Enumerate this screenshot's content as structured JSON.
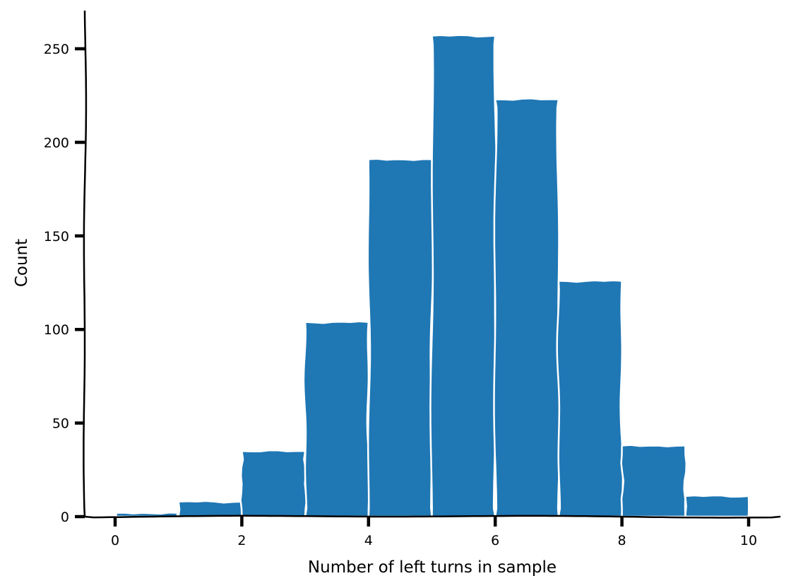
{
  "chart_data": {
    "type": "bar",
    "style": "xkcd hand-drawn histogram",
    "bin_edges": [
      0,
      1,
      2,
      3,
      4,
      5,
      6,
      7,
      8,
      9,
      10
    ],
    "values": [
      2,
      8,
      35,
      104,
      191,
      257,
      223,
      126,
      38,
      11
    ],
    "title": "",
    "xlabel": "Number of left turns in sample",
    "ylabel": "Count",
    "xlim": [
      -0.5,
      10.5
    ],
    "ylim": [
      0,
      270
    ],
    "xticks": [
      0,
      2,
      4,
      6,
      8,
      10
    ],
    "yticks": [
      0,
      50,
      100,
      150,
      200,
      250
    ],
    "grid": false,
    "legend": "none",
    "bar_color": "#1f77b4",
    "edge_color": "#ffffff"
  }
}
